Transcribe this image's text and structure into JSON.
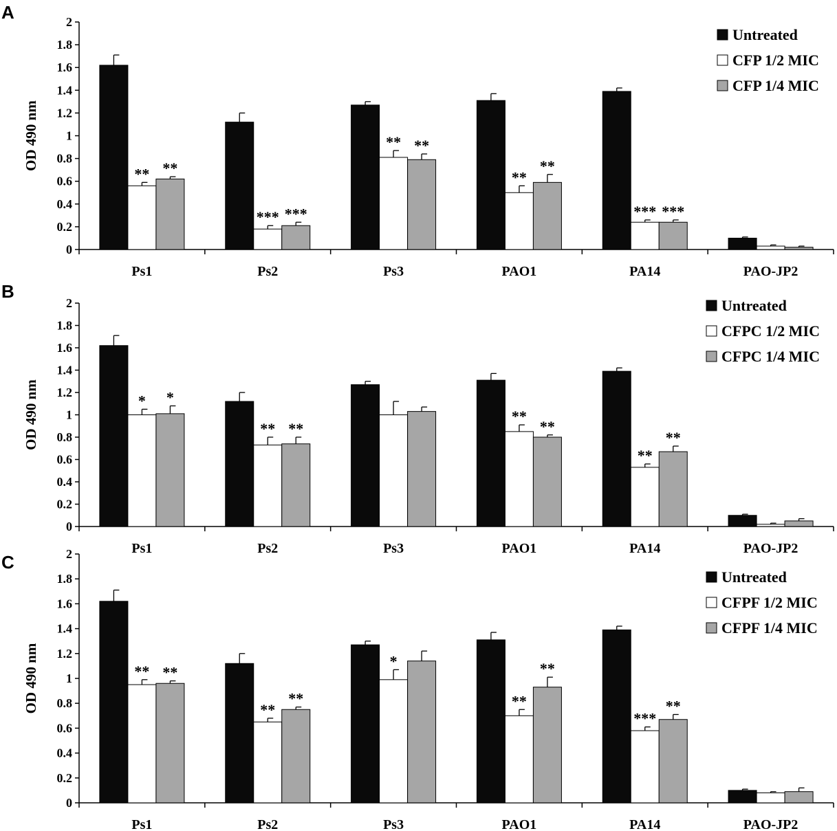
{
  "colors": {
    "untreated": "#0a0a0a",
    "half_mic": "#ffffff",
    "quarter_mic": "#a6a6a6",
    "axis": "#000000"
  },
  "chart_data": [
    {
      "panel": "A",
      "type": "bar",
      "ylabel": "OD 490 nm",
      "ylim": [
        0,
        2
      ],
      "yticks": [
        "0",
        "0.2",
        "0.4",
        "0.6",
        "0.8",
        "1",
        "1.2",
        "1.4",
        "1.6",
        "1.8",
        "2"
      ],
      "categories": [
        "Ps1",
        "Ps2",
        "Ps3",
        "PAO1",
        "PA14",
        "PAO-JP2"
      ],
      "legend_position": "top-right",
      "series": [
        {
          "name": "Untreated",
          "values": [
            1.62,
            1.12,
            1.27,
            1.31,
            1.39,
            0.1
          ],
          "errors": [
            0.09,
            0.08,
            0.03,
            0.06,
            0.03,
            0.01
          ],
          "significance": [
            "",
            "",
            "",
            "",
            "",
            ""
          ]
        },
        {
          "name": "CFP 1/2 MIC",
          "values": [
            0.56,
            0.18,
            0.81,
            0.5,
            0.24,
            0.03
          ],
          "errors": [
            0.03,
            0.03,
            0.06,
            0.06,
            0.02,
            0.01
          ],
          "significance": [
            "**",
            "***",
            "**",
            "**",
            "***",
            ""
          ]
        },
        {
          "name": "CFP 1/4 MIC",
          "values": [
            0.62,
            0.21,
            0.79,
            0.59,
            0.24,
            0.02
          ],
          "errors": [
            0.02,
            0.03,
            0.05,
            0.07,
            0.02,
            0.01
          ],
          "significance": [
            "**",
            "***",
            "**",
            "**",
            "***",
            ""
          ]
        }
      ]
    },
    {
      "panel": "B",
      "type": "bar",
      "ylabel": "OD 490 nm",
      "ylim": [
        0,
        2
      ],
      "yticks": [
        "0",
        "0.2",
        "0.4",
        "0.6",
        "0.8",
        "1",
        "1.2",
        "1.4",
        "1.6",
        "1.8",
        "2"
      ],
      "categories": [
        "Ps1",
        "Ps2",
        "Ps3",
        "PAO1",
        "PA14",
        "PAO-JP2"
      ],
      "legend_position": "top-right",
      "series": [
        {
          "name": "Untreated",
          "values": [
            1.62,
            1.12,
            1.27,
            1.31,
            1.39,
            0.1
          ],
          "errors": [
            0.09,
            0.08,
            0.03,
            0.06,
            0.03,
            0.01
          ],
          "significance": [
            "",
            "",
            "",
            "",
            "",
            ""
          ]
        },
        {
          "name": "CFPC 1/2 MIC",
          "values": [
            1.0,
            0.73,
            1.0,
            0.85,
            0.53,
            0.02
          ],
          "errors": [
            0.05,
            0.07,
            0.12,
            0.06,
            0.03,
            0.01
          ],
          "significance": [
            "*",
            "**",
            "",
            "**",
            "**",
            ""
          ]
        },
        {
          "name": "CFPC 1/4 MIC",
          "values": [
            1.01,
            0.74,
            1.03,
            0.8,
            0.67,
            0.05
          ],
          "errors": [
            0.07,
            0.06,
            0.04,
            0.02,
            0.05,
            0.02
          ],
          "significance": [
            "*",
            "**",
            "",
            "**",
            "**",
            ""
          ]
        }
      ]
    },
    {
      "panel": "C",
      "type": "bar",
      "ylabel": "OD 490 nm",
      "ylim": [
        0,
        2
      ],
      "yticks": [
        "0",
        "0.2",
        "0.4",
        "0.6",
        "0.8",
        "1",
        "1.2",
        "1.4",
        "1.6",
        "1.8",
        "2"
      ],
      "categories": [
        "Ps1",
        "Ps2",
        "Ps3",
        "PAO1",
        "PA14",
        "PAO-JP2"
      ],
      "legend_position": "top-right",
      "series": [
        {
          "name": "Untreated",
          "values": [
            1.62,
            1.12,
            1.27,
            1.31,
            1.39,
            0.1
          ],
          "errors": [
            0.09,
            0.08,
            0.03,
            0.06,
            0.03,
            0.01
          ],
          "significance": [
            "",
            "",
            "",
            "",
            "",
            ""
          ]
        },
        {
          "name": "CFPF 1/2 MIC",
          "values": [
            0.95,
            0.65,
            0.99,
            0.7,
            0.58,
            0.08
          ],
          "errors": [
            0.04,
            0.03,
            0.08,
            0.05,
            0.03,
            0.01
          ],
          "significance": [
            "**",
            "**",
            "*",
            "**",
            "***",
            ""
          ]
        },
        {
          "name": "CFPF 1/4 MIC",
          "values": [
            0.96,
            0.75,
            1.14,
            0.93,
            0.67,
            0.09
          ],
          "errors": [
            0.02,
            0.02,
            0.08,
            0.08,
            0.04,
            0.03
          ],
          "significance": [
            "**",
            "**",
            "",
            "**",
            "**",
            ""
          ]
        }
      ]
    }
  ]
}
